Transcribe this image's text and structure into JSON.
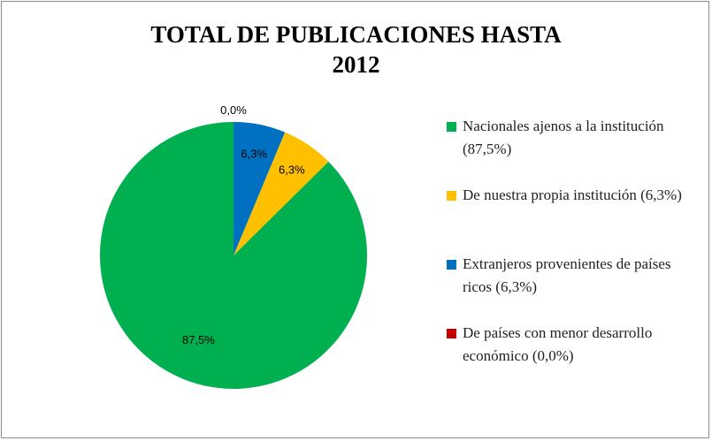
{
  "chart_data": {
    "type": "pie",
    "title_lines": [
      "TOTAL DE PUBLICACIONES HASTA",
      "2012"
    ],
    "slices": [
      {
        "legend": "Nacionales ajenos a la institución (87,5%)",
        "value": 87.5,
        "label": "87,5%",
        "color": "#00b050"
      },
      {
        "legend": "De nuestra propia institución (6,3%)",
        "value": 6.3,
        "label": "6,3%",
        "color": "#ffc000"
      },
      {
        "legend": "Extranjeros provenientes de países ricos (6,3%)",
        "value": 6.3,
        "label": "6,3%",
        "color": "#0070c0"
      },
      {
        "legend": "De países con menor desarrollo económico (0,0%)",
        "value": 0.0,
        "label": "0,0%",
        "color": "#c00000"
      }
    ],
    "legend_position": "right",
    "direction": "counterclockwise"
  }
}
